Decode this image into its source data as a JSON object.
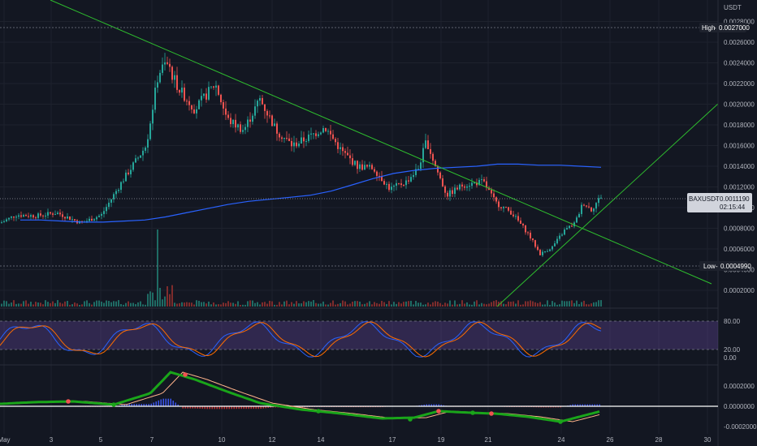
{
  "chart_data": {
    "type": "candlestick",
    "symbol": "BAXUSDT",
    "currency": "USDT",
    "last_price": "0.0011190",
    "countdown": "02:15:44",
    "high_label": "High",
    "high_value": "0.0027000",
    "low_label": "Low",
    "low_value": "0.0004990",
    "price_axis_labels": [
      "0.0028000",
      "0.0026000",
      "0.0024000",
      "0.0022000",
      "0.0020000",
      "0.0018000",
      "0.0016000",
      "0.0014000",
      "0.0012000",
      "0.0010000",
      "0.0008000",
      "0.0006000",
      "0.0004000",
      "0.0002000"
    ],
    "x_axis_labels": [
      "May",
      "3",
      "5",
      "7",
      "10",
      "12",
      "14",
      "17",
      "19",
      "21",
      "24",
      "26",
      "28",
      "30"
    ],
    "stoch_axis_labels": [
      "80.00",
      "20.00",
      "0.00"
    ],
    "macd_axis_labels": [
      "0.0002000",
      "0.0000000",
      "-0.0002000"
    ],
    "price_ylim": [
      0.00015,
      0.0029
    ],
    "ma_series": [
      0.00088,
      0.00088,
      0.00087,
      0.00086,
      0.00086,
      0.00087,
      0.00088,
      0.00091,
      0.00095,
      0.00099,
      0.00103,
      0.00106,
      0.00108,
      0.0011,
      0.00112,
      0.00116,
      0.00122,
      0.00128,
      0.00133,
      0.00136,
      0.00138,
      0.00139,
      0.0014,
      0.00142,
      0.00142,
      0.00141,
      0.00141,
      0.0014,
      0.00139
    ],
    "colors": {
      "up": "#26a69a",
      "down": "#ef5350",
      "ma": "#2962ff",
      "trend": "#2ebd2e",
      "stoch_k": "#2962ff",
      "stoch_d": "#ff6d00",
      "macd_line": "#1aa51a",
      "signal_line": "#ffb38a"
    }
  }
}
